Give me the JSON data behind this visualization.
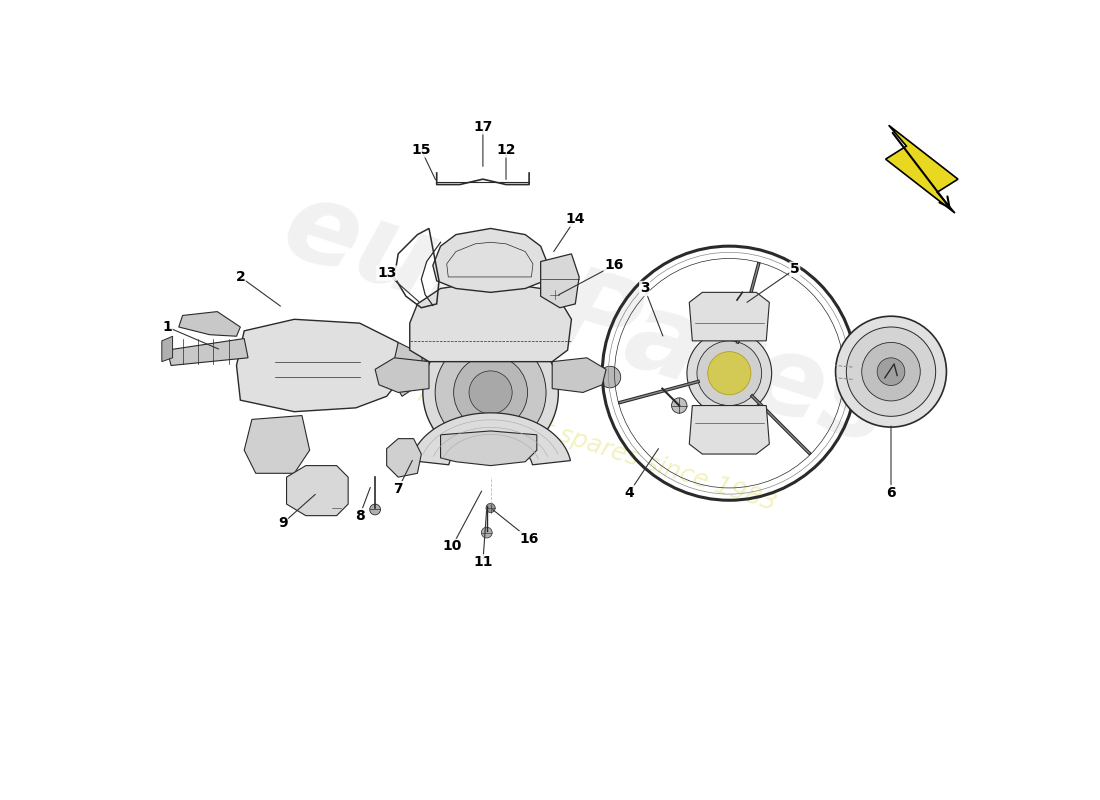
{
  "bg_color": "#ffffff",
  "ec": "#2a2a2a",
  "fc_light": "#e8e8e8",
  "fc_mid": "#d0d0d0",
  "fc_dark": "#b8b8b8",
  "arrow_color": "#333333",
  "dashed_color": "#555555",
  "watermark_logo": "#dedede",
  "watermark_text": "#e8e480",
  "wm_logo_alpha": 0.4,
  "wm_text_alpha": 0.5,
  "yellow_accent": "#d4c840",
  "xlim": [
    0,
    11
  ],
  "ylim": [
    0,
    8
  ],
  "part_label_fs": 10,
  "bracket_17_x": [
    3.85,
    3.85,
    4.15,
    4.45,
    4.75,
    5.05,
    5.05
  ],
  "bracket_17_y": [
    7.0,
    6.85,
    6.85,
    6.92,
    6.85,
    6.85,
    7.0
  ],
  "labels": [
    [
      1,
      0.35,
      5.0,
      1.05,
      4.7
    ],
    [
      2,
      1.3,
      5.65,
      1.85,
      5.25
    ],
    [
      3,
      6.55,
      5.5,
      6.8,
      4.85
    ],
    [
      4,
      6.35,
      2.85,
      6.75,
      3.45
    ],
    [
      5,
      8.5,
      5.75,
      7.85,
      5.3
    ],
    [
      6,
      9.75,
      2.85,
      9.75,
      3.75
    ],
    [
      7,
      3.35,
      2.9,
      3.55,
      3.3
    ],
    [
      8,
      2.85,
      2.55,
      3.0,
      2.95
    ],
    [
      9,
      1.85,
      2.45,
      2.3,
      2.85
    ],
    [
      10,
      4.05,
      2.15,
      4.45,
      2.9
    ],
    [
      11,
      4.45,
      1.95,
      4.5,
      2.65
    ],
    [
      12,
      4.75,
      7.3,
      4.75,
      6.88
    ],
    [
      13,
      3.2,
      5.7,
      3.65,
      5.3
    ],
    [
      14,
      5.65,
      6.4,
      5.35,
      5.95
    ],
    [
      15,
      3.65,
      7.3,
      3.85,
      6.88
    ],
    [
      17,
      4.45,
      7.6,
      4.45,
      7.05
    ]
  ],
  "label16_1": [
    6.15,
    5.8,
    5.4,
    5.4
  ],
  "label16_2": [
    5.05,
    2.25,
    4.55,
    2.65
  ]
}
